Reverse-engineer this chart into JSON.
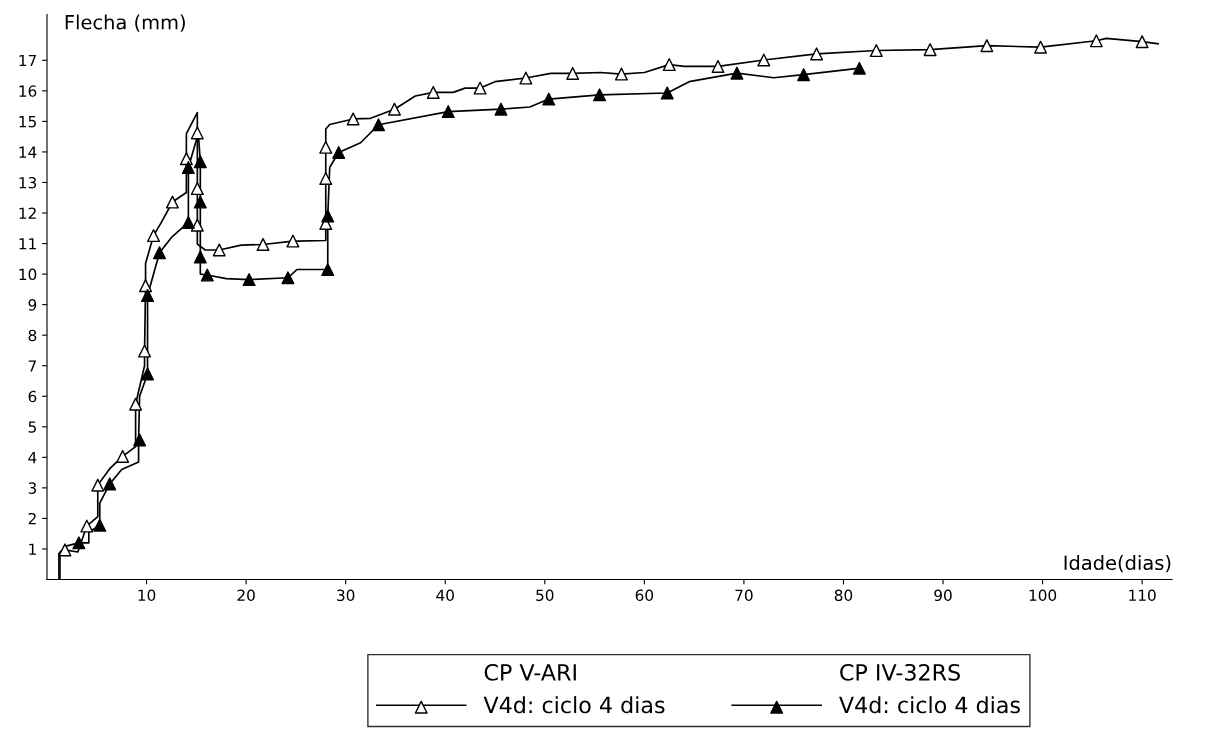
{
  "chart_data": {
    "type": "line",
    "xlabel": "Idade(dias)",
    "ylabel": "Flecha (mm)",
    "annotations": [
      "CP V-ARI",
      "CP IV-32RS"
    ],
    "xlim": [
      0,
      113
    ],
    "xticks": [
      10,
      20,
      30,
      40,
      50,
      60,
      70,
      80,
      90,
      100,
      110
    ],
    "ylim": [
      0,
      18.5
    ],
    "yticks": [
      1,
      2,
      3,
      4,
      5,
      6,
      7,
      8,
      9,
      10,
      11,
      12,
      13,
      14,
      15,
      16,
      17
    ],
    "grid": false,
    "legend": "bottom",
    "series": [
      {
        "name": "V4d: ciclo 4 dias",
        "color": "#000000",
        "marker": "none",
        "x": [
          1.2,
          1.2,
          1.8,
          3.1,
          4.0,
          5.1,
          5.1,
          6.3,
          7.6,
          8.9,
          8.9,
          9.8,
          9.8,
          9.9,
          9.9,
          10.7,
          11.5,
          12.6,
          14.0,
          14.0,
          14.0,
          15.1,
          15.1,
          15.1,
          15.1,
          15.1,
          15.9,
          17.3,
          19.5,
          21.7,
          24.7,
          25.1,
          28.0,
          28.0,
          28.0,
          28.0,
          28.0,
          28.4,
          30.75,
          32.5,
          34.9,
          37.0,
          38.8,
          40.8,
          42.0,
          43.5,
          45.0,
          48.1,
          50.6,
          52.8,
          55.6,
          57.7,
          60.0,
          62.5,
          64.0,
          67.4,
          72.0,
          77.3,
          83.3,
          88.7,
          94.4,
          99.8,
          105.4,
          106.4,
          110.0,
          111.6
        ],
        "values": [
          0,
          0.85,
          0.97,
          0.9,
          1.75,
          2.06,
          3.09,
          3.63,
          4.03,
          4.35,
          5.74,
          7.0,
          7.48,
          9.62,
          10.35,
          11.26,
          11.7,
          12.36,
          12.67,
          13.78,
          14.6,
          15.29,
          14.62,
          12.8,
          11.6,
          10.98,
          10.79,
          10.79,
          10.95,
          10.97,
          11.08,
          11.08,
          11.1,
          11.66,
          13.13,
          14.15,
          14.75,
          14.9,
          15.08,
          15.1,
          15.4,
          15.83,
          15.95,
          15.95,
          16.09,
          16.09,
          16.3,
          16.42,
          16.57,
          16.57,
          16.6,
          16.55,
          16.6,
          16.86,
          16.8,
          16.8,
          17.01,
          17.21,
          17.32,
          17.35,
          17.48,
          17.43,
          17.64,
          17.72,
          17.61,
          17.54
        ]
      },
      {
        "type": "scatter",
        "color": "#ffffff",
        "marker": "triangle",
        "x": [
          1.8,
          4.0,
          5.1,
          7.6,
          8.9,
          9.8,
          9.9,
          10.7,
          12.6,
          14.0,
          15.1,
          15.1,
          15.1,
          17.3,
          21.7,
          24.7,
          28.0,
          28.0,
          28.0,
          30.75,
          34.9,
          38.8,
          43.5,
          48.1,
          52.8,
          57.7,
          62.5,
          67.4,
          72.0,
          77.3,
          83.3,
          88.7,
          94.4,
          99.8,
          105.4,
          110.0
        ],
        "values": [
          0.97,
          1.75,
          3.09,
          4.03,
          5.74,
          7.48,
          9.62,
          11.26,
          12.36,
          13.78,
          14.62,
          12.8,
          11.6,
          10.79,
          10.97,
          11.08,
          11.66,
          13.13,
          14.15,
          15.08,
          15.4,
          15.95,
          16.09,
          16.42,
          16.57,
          16.55,
          16.86,
          16.8,
          17.01,
          17.21,
          17.32,
          17.35,
          17.48,
          17.43,
          17.64,
          17.61
        ]
      },
      {
        "name": "V4d: ciclo 4 dias",
        "color": "#000000",
        "marker": "none",
        "x": [
          1.3,
          1.3,
          2.0,
          3.2,
          4.2,
          4.2,
          5.3,
          5.3,
          6.3,
          7.5,
          9.2,
          9.2,
          9.3,
          10.1,
          10.1,
          11.3,
          12.5,
          14.2,
          14.2,
          15.2,
          15.4,
          15.4,
          15.4,
          15.4,
          16.1,
          18.0,
          20.3,
          24.2,
          25.1,
          28.2,
          28.2,
          28.4,
          29.3,
          31.5,
          33.3,
          40.3,
          45.6,
          48.5,
          50.4,
          55.5,
          62.3,
          64.5,
          69.3,
          73.0,
          76.0,
          81.6
        ],
        "values": [
          0,
          0.9,
          1.1,
          1.2,
          1.2,
          1.55,
          1.78,
          2.5,
          3.13,
          3.6,
          3.85,
          4.57,
          6.0,
          6.73,
          9.3,
          10.7,
          11.2,
          11.69,
          13.49,
          14.6,
          13.68,
          12.36,
          10.56,
          10.0,
          9.97,
          9.85,
          9.82,
          9.88,
          10.15,
          10.15,
          11.9,
          13.5,
          13.98,
          14.3,
          14.89,
          15.32,
          15.4,
          15.47,
          15.73,
          15.87,
          15.93,
          16.3,
          16.58,
          16.43,
          16.53,
          16.74
        ]
      },
      {
        "type": "scatter",
        "color": "#000000",
        "marker": "triangle",
        "x": [
          3.2,
          5.3,
          6.3,
          9.3,
          10.1,
          10.1,
          11.3,
          14.2,
          14.2,
          15.4,
          15.4,
          15.4,
          16.1,
          20.3,
          24.2,
          28.2,
          28.2,
          29.3,
          33.3,
          40.3,
          45.6,
          50.4,
          55.5,
          62.3,
          69.3,
          76.0,
          81.6
        ],
        "values": [
          1.2,
          1.78,
          3.13,
          4.57,
          6.73,
          9.3,
          10.7,
          11.69,
          13.49,
          13.68,
          12.36,
          10.56,
          9.97,
          9.82,
          9.88,
          10.15,
          11.9,
          13.98,
          14.89,
          15.32,
          15.4,
          15.73,
          15.87,
          15.93,
          16.58,
          16.53,
          16.74
        ]
      }
    ]
  }
}
